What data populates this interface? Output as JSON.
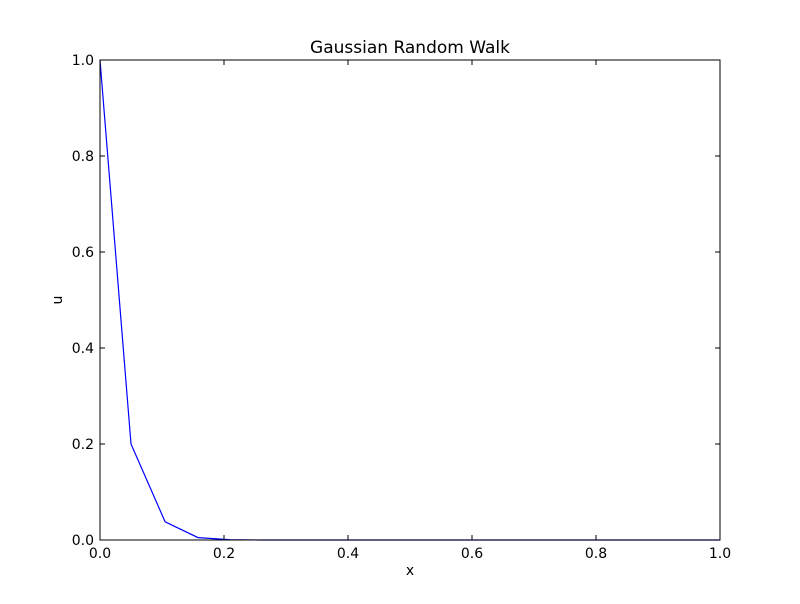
{
  "chart_data": {
    "type": "line",
    "title": "Gaussian Random Walk",
    "xlabel": "x",
    "ylabel": "u",
    "xlim": [
      0.0,
      1.0
    ],
    "ylim": [
      0.0,
      1.0
    ],
    "x_ticks": [
      "0.0",
      "0.2",
      "0.4",
      "0.6",
      "0.8",
      "1.0"
    ],
    "y_ticks": [
      "0.0",
      "0.2",
      "0.4",
      "0.6",
      "0.8",
      "1.0"
    ],
    "x_tick_values": [
      0.0,
      0.2,
      0.4,
      0.6,
      0.8,
      1.0
    ],
    "y_tick_values": [
      0.0,
      0.2,
      0.4,
      0.6,
      0.8,
      1.0
    ],
    "grid": false,
    "legend": "none",
    "series": [
      {
        "color": "#0000ff",
        "x": [
          0.0,
          0.05,
          0.105,
          0.158,
          0.21,
          0.26,
          0.32,
          0.37,
          0.42,
          0.47,
          0.53,
          0.58,
          0.63,
          0.68,
          0.74,
          0.79,
          0.84,
          0.89,
          0.95,
          1.0
        ],
        "y": [
          1.0,
          0.2,
          0.038,
          0.005,
          0.0005,
          0.0,
          0.0,
          0.0,
          0.0,
          0.0,
          0.0,
          0.0,
          0.0,
          0.0,
          0.0,
          0.0,
          0.0,
          0.0,
          0.0,
          0.0
        ]
      }
    ]
  }
}
